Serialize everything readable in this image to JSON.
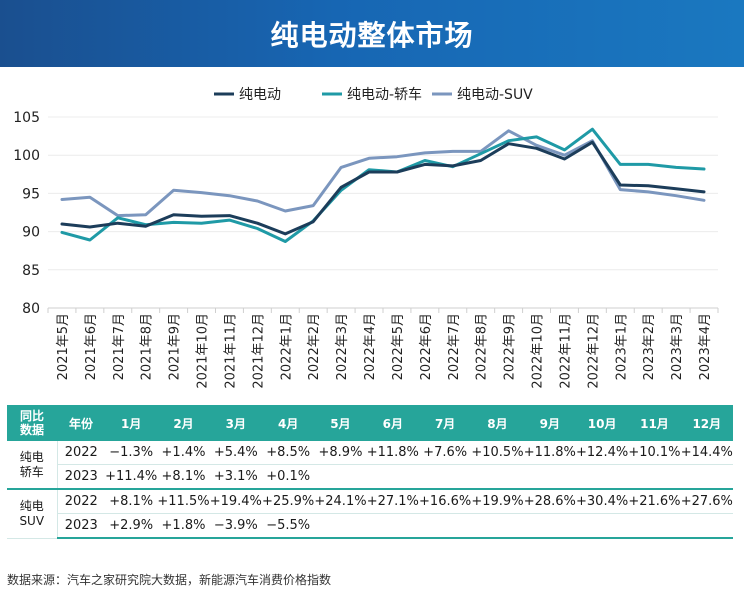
{
  "title": "纯电动整体市场",
  "source": "数据来源：汽车之家研究院大数据，新能源汽车消费价格指数",
  "chart_data": {
    "type": "line",
    "x": [
      "2021年5月",
      "2021年6月",
      "2021年7月",
      "2021年8月",
      "2021年9月",
      "2021年10月",
      "2021年11月",
      "2021年12月",
      "2022年1月",
      "2022年2月",
      "2022年3月",
      "2022年4月",
      "2022年5月",
      "2022年6月",
      "2022年7月",
      "2022年8月",
      "2022年9月",
      "2022年10月",
      "2022年11月",
      "2022年12月",
      "2023年1月",
      "2023年2月",
      "2023年3月",
      "2023年4月"
    ],
    "ylim": [
      80,
      105
    ],
    "yticks": [
      80,
      85,
      90,
      95,
      100,
      105
    ],
    "legend_position": "top",
    "series": [
      {
        "name": "纯电动",
        "color": "#1c3d5a",
        "values": [
          91.0,
          90.6,
          91.1,
          90.7,
          92.2,
          92.0,
          92.1,
          91.1,
          89.7,
          91.3,
          95.8,
          97.8,
          97.8,
          98.8,
          98.6,
          99.3,
          101.5,
          100.9,
          99.5,
          101.7,
          96.1,
          96.0,
          95.6,
          95.2
        ]
      },
      {
        "name": "纯电动-轿车",
        "color": "#1f9aa6",
        "values": [
          89.9,
          88.9,
          91.8,
          90.9,
          91.2,
          91.1,
          91.5,
          90.4,
          88.7,
          91.4,
          95.4,
          98.1,
          97.8,
          99.3,
          98.5,
          100.2,
          101.9,
          102.4,
          100.7,
          103.4,
          98.8,
          98.8,
          98.4,
          98.2
        ]
      },
      {
        "name": "纯电动-SUV",
        "color": "#7b96be",
        "values": [
          94.2,
          94.5,
          92.1,
          92.2,
          95.4,
          95.1,
          94.7,
          94.0,
          92.7,
          93.4,
          98.4,
          99.6,
          99.8,
          100.3,
          100.5,
          100.5,
          103.2,
          101.3,
          100.0,
          101.9,
          95.5,
          95.2,
          94.7,
          94.1
        ]
      }
    ]
  },
  "table": {
    "corner": [
      "同比",
      "数据"
    ],
    "year_header": "年份",
    "months": [
      "1月",
      "2月",
      "3月",
      "4月",
      "5月",
      "6月",
      "7月",
      "8月",
      "9月",
      "10月",
      "11月",
      "12月"
    ],
    "groups": [
      {
        "name": [
          "纯电",
          "轿车"
        ],
        "rows": [
          {
            "year": "2022",
            "values": [
              "−1.3%",
              "+1.4%",
              "+5.4%",
              "+8.5%",
              "+8.9%",
              "+11.8%",
              "+7.6%",
              "+10.5%",
              "+11.8%",
              "+12.4%",
              "+10.1%",
              "+14.4%"
            ]
          },
          {
            "year": "2023",
            "values": [
              "+11.4%",
              "+8.1%",
              "+3.1%",
              "+0.1%",
              "",
              "",
              "",
              "",
              "",
              "",
              "",
              ""
            ]
          }
        ]
      },
      {
        "name": [
          "纯电",
          "SUV"
        ],
        "rows": [
          {
            "year": "2022",
            "values": [
              "+8.1%",
              "+11.5%",
              "+19.4%",
              "+25.9%",
              "+24.1%",
              "+27.1%",
              "+16.6%",
              "+19.9%",
              "+28.6%",
              "+30.4%",
              "+21.6%",
              "+27.6%"
            ]
          },
          {
            "year": "2023",
            "values": [
              "+2.9%",
              "+1.8%",
              "−3.9%",
              "−5.5%",
              "",
              "",
              "",
              "",
              "",
              "",
              "",
              ""
            ]
          }
        ]
      }
    ]
  }
}
